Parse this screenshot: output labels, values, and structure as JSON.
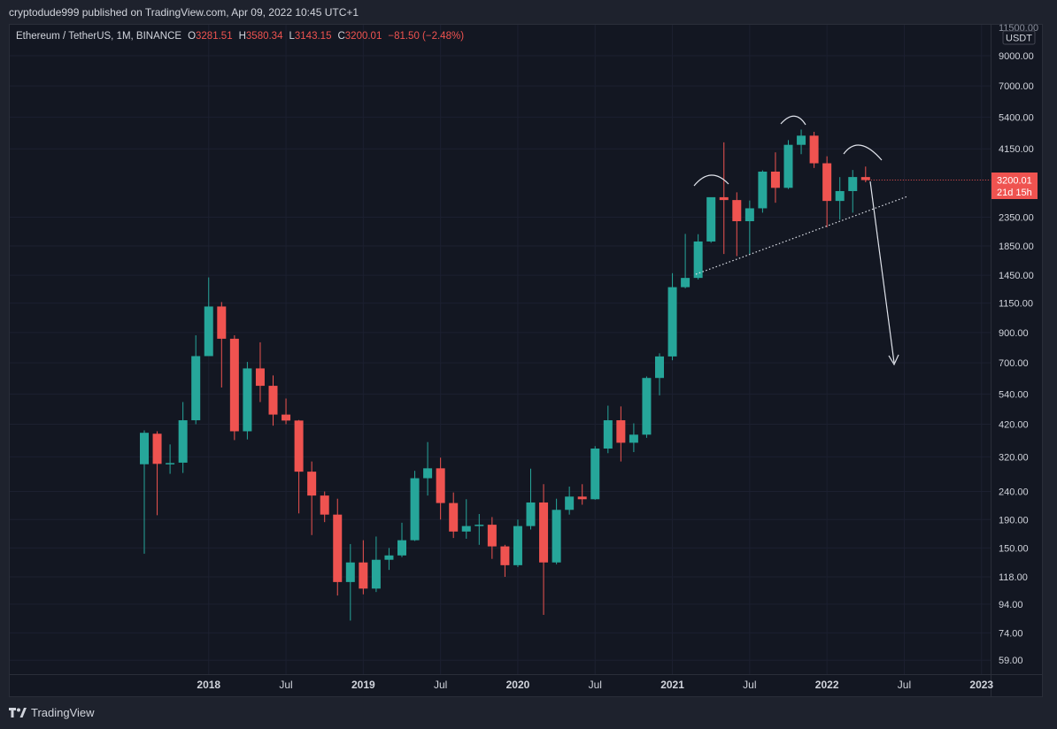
{
  "header": {
    "published": "cryptodude999 published on TradingView.com, Apr 09, 2022 10:45 UTC+1"
  },
  "legend": {
    "symbol": "Ethereum / TetherUS, 1M, BINANCE",
    "o_label": "O",
    "o_value": "3281.51",
    "h_label": "H",
    "h_value": "3580.34",
    "l_label": "L",
    "l_value": "3143.15",
    "c_label": "C",
    "c_value": "3200.01",
    "change": "−81.50 (−2.48%)"
  },
  "price_axis": {
    "currency": "USDT",
    "top_label": "11500.00",
    "labels": [
      "9000.00",
      "7000.00",
      "5400.00",
      "4150.00",
      "2350.00",
      "1850.00",
      "1450.00",
      "1150.00",
      "900.00",
      "700.00",
      "540.00",
      "420.00",
      "320.00",
      "240.00",
      "190.00",
      "150.00",
      "118.00",
      "94.00",
      "74.00",
      "59.00"
    ],
    "last_price": "3200.01",
    "countdown": "21d 15h"
  },
  "time_axis": {
    "labels": [
      {
        "text": "2018",
        "bold": true
      },
      {
        "text": "Jul",
        "bold": false
      },
      {
        "text": "2019",
        "bold": true
      },
      {
        "text": "Jul",
        "bold": false
      },
      {
        "text": "2020",
        "bold": true
      },
      {
        "text": "Jul",
        "bold": false
      },
      {
        "text": "2021",
        "bold": true
      },
      {
        "text": "Jul",
        "bold": false
      },
      {
        "text": "2022",
        "bold": true
      },
      {
        "text": "Jul",
        "bold": false
      },
      {
        "text": "2023",
        "bold": true
      }
    ]
  },
  "colors": {
    "up": "#26a69a",
    "down": "#ef5350",
    "background": "#131722",
    "text": "#d1d4dc",
    "grid": "#1c2030"
  },
  "footer": {
    "brand": "TradingView"
  },
  "chart_data": {
    "type": "candlestick",
    "scale": "log",
    "ylim": [
      52,
      11500
    ],
    "x_start": "2017-08",
    "annotations": [
      "head-and-shoulders arcs",
      "dotted neckline",
      "down arrow"
    ],
    "candles": [
      {
        "t": "2017-08",
        "o": 301,
        "h": 399,
        "l": 143,
        "c": 391
      },
      {
        "t": "2017-09",
        "o": 388,
        "h": 396,
        "l": 197,
        "c": 302
      },
      {
        "t": "2017-10",
        "o": 302,
        "h": 355,
        "l": 278,
        "c": 304
      },
      {
        "t": "2017-11",
        "o": 305,
        "h": 505,
        "l": 280,
        "c": 434
      },
      {
        "t": "2017-12",
        "o": 434,
        "h": 880,
        "l": 420,
        "c": 740
      },
      {
        "t": "2018-01",
        "o": 740,
        "h": 1424,
        "l": 740,
        "c": 1118
      },
      {
        "t": "2018-02",
        "o": 1118,
        "h": 1160,
        "l": 570,
        "c": 855
      },
      {
        "t": "2018-03",
        "o": 855,
        "h": 880,
        "l": 368,
        "c": 396
      },
      {
        "t": "2018-04",
        "o": 396,
        "h": 705,
        "l": 370,
        "c": 668
      },
      {
        "t": "2018-05",
        "o": 668,
        "h": 830,
        "l": 505,
        "c": 578
      },
      {
        "t": "2018-06",
        "o": 578,
        "h": 630,
        "l": 415,
        "c": 455
      },
      {
        "t": "2018-07",
        "o": 455,
        "h": 520,
        "l": 420,
        "c": 433
      },
      {
        "t": "2018-08",
        "o": 433,
        "h": 435,
        "l": 200,
        "c": 283
      },
      {
        "t": "2018-09",
        "o": 283,
        "h": 308,
        "l": 167,
        "c": 232
      },
      {
        "t": "2018-10",
        "o": 232,
        "h": 240,
        "l": 186,
        "c": 198
      },
      {
        "t": "2018-11",
        "o": 198,
        "h": 226,
        "l": 101,
        "c": 113
      },
      {
        "t": "2018-12",
        "o": 113,
        "h": 155,
        "l": 82,
        "c": 133
      },
      {
        "t": "2019-01",
        "o": 133,
        "h": 160,
        "l": 102,
        "c": 107
      },
      {
        "t": "2019-02",
        "o": 107,
        "h": 165,
        "l": 104,
        "c": 136
      },
      {
        "t": "2019-03",
        "o": 136,
        "h": 150,
        "l": 125,
        "c": 141
      },
      {
        "t": "2019-04",
        "o": 141,
        "h": 185,
        "l": 139,
        "c": 160
      },
      {
        "t": "2019-05",
        "o": 160,
        "h": 285,
        "l": 159,
        "c": 268
      },
      {
        "t": "2019-06",
        "o": 268,
        "h": 362,
        "l": 232,
        "c": 291
      },
      {
        "t": "2019-07",
        "o": 291,
        "h": 318,
        "l": 190,
        "c": 218
      },
      {
        "t": "2019-08",
        "o": 218,
        "h": 238,
        "l": 163,
        "c": 172
      },
      {
        "t": "2019-09",
        "o": 172,
        "h": 225,
        "l": 162,
        "c": 180
      },
      {
        "t": "2019-10",
        "o": 180,
        "h": 199,
        "l": 154,
        "c": 182
      },
      {
        "t": "2019-11",
        "o": 182,
        "h": 194,
        "l": 137,
        "c": 152
      },
      {
        "t": "2019-12",
        "o": 152,
        "h": 154,
        "l": 118,
        "c": 130
      },
      {
        "t": "2020-01",
        "o": 130,
        "h": 190,
        "l": 128,
        "c": 180
      },
      {
        "t": "2020-02",
        "o": 180,
        "h": 290,
        "l": 175,
        "c": 219
      },
      {
        "t": "2020-03",
        "o": 219,
        "h": 255,
        "l": 86,
        "c": 133
      },
      {
        "t": "2020-04",
        "o": 133,
        "h": 226,
        "l": 131,
        "c": 206
      },
      {
        "t": "2020-05",
        "o": 206,
        "h": 250,
        "l": 198,
        "c": 230
      },
      {
        "t": "2020-06",
        "o": 230,
        "h": 255,
        "l": 215,
        "c": 225
      },
      {
        "t": "2020-07",
        "o": 225,
        "h": 350,
        "l": 224,
        "c": 343
      },
      {
        "t": "2020-08",
        "o": 343,
        "h": 490,
        "l": 330,
        "c": 434
      },
      {
        "t": "2020-09",
        "o": 434,
        "h": 487,
        "l": 308,
        "c": 360
      },
      {
        "t": "2020-10",
        "o": 360,
        "h": 423,
        "l": 333,
        "c": 385
      },
      {
        "t": "2020-11",
        "o": 385,
        "h": 625,
        "l": 375,
        "c": 617
      },
      {
        "t": "2020-12",
        "o": 617,
        "h": 757,
        "l": 534,
        "c": 738
      },
      {
        "t": "2021-01",
        "o": 738,
        "h": 1475,
        "l": 715,
        "c": 1313
      },
      {
        "t": "2021-02",
        "o": 1313,
        "h": 2045,
        "l": 1300,
        "c": 1418
      },
      {
        "t": "2021-03",
        "o": 1418,
        "h": 2040,
        "l": 1400,
        "c": 1920
      },
      {
        "t": "2021-04",
        "o": 1920,
        "h": 2740,
        "l": 1900,
        "c": 2775
      },
      {
        "t": "2021-05",
        "o": 2775,
        "h": 4380,
        "l": 1730,
        "c": 2710
      },
      {
        "t": "2021-06",
        "o": 2710,
        "h": 2890,
        "l": 1700,
        "c": 2273
      },
      {
        "t": "2021-07",
        "o": 2273,
        "h": 2700,
        "l": 1720,
        "c": 2530
      },
      {
        "t": "2021-08",
        "o": 2530,
        "h": 3470,
        "l": 2440,
        "c": 3433
      },
      {
        "t": "2021-09",
        "o": 3433,
        "h": 4030,
        "l": 2650,
        "c": 3000
      },
      {
        "t": "2021-10",
        "o": 3000,
        "h": 4460,
        "l": 2970,
        "c": 4290
      },
      {
        "t": "2021-11",
        "o": 4290,
        "h": 4870,
        "l": 3970,
        "c": 4630
      },
      {
        "t": "2021-12",
        "o": 4630,
        "h": 4780,
        "l": 3540,
        "c": 3680
      },
      {
        "t": "2022-01",
        "o": 3680,
        "h": 3900,
        "l": 2160,
        "c": 2690
      },
      {
        "t": "2022-02",
        "o": 2690,
        "h": 3280,
        "l": 2300,
        "c": 2920
      },
      {
        "t": "2022-03",
        "o": 2920,
        "h": 3480,
        "l": 2440,
        "c": 3282
      },
      {
        "t": "2022-04",
        "o": 3281.51,
        "h": 3580.34,
        "l": 3143.15,
        "c": 3200.01
      }
    ]
  }
}
